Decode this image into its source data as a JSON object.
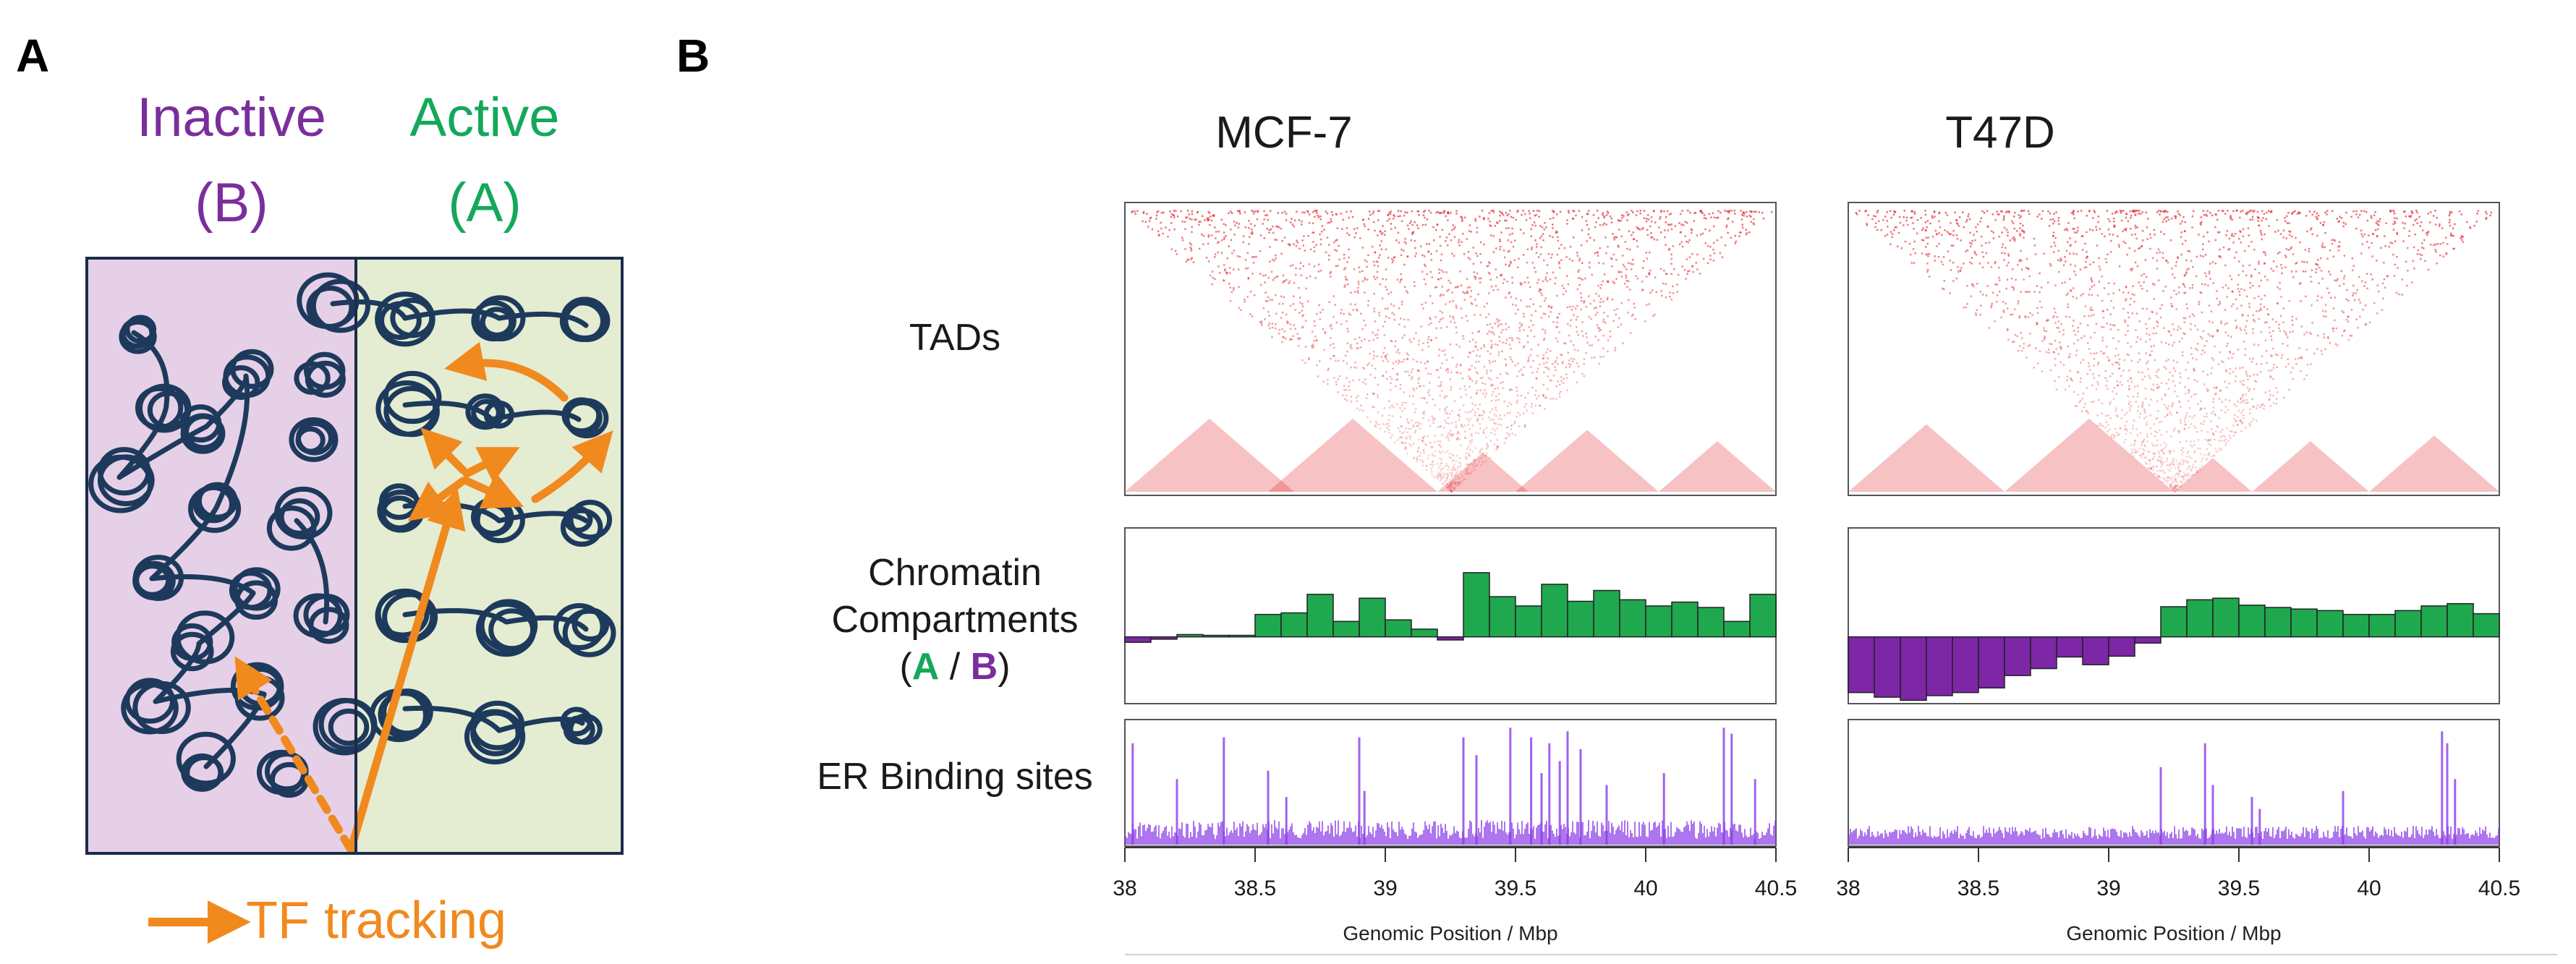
{
  "panel_a": {
    "letter": "A",
    "inactive_word": "Inactive",
    "inactive_code": "(B)",
    "active_word": "Active",
    "active_code": "(A)",
    "legend_label": "TF tracking",
    "colors": {
      "inactive_bg": "#e6d0e8",
      "active_bg": "#e4ecd2",
      "fiber": "#1d3a5c",
      "arrow": "#f08a1e"
    }
  },
  "panel_b": {
    "letter": "B",
    "column_titles": [
      "MCF-7",
      "T47D"
    ],
    "row_labels": {
      "tads": "TADs",
      "compartments_line1": "Chromatin",
      "compartments_line2": "Compartments",
      "paren_open": "(",
      "a_letter": "A",
      "slash": " / ",
      "b_letter": "B",
      "paren_close": ")",
      "er": "ER Binding sites"
    },
    "xaxis_title": "Genomic Position / Mbp",
    "colors": {
      "tad": "#e3242b",
      "compartment_a": "#1fa84e",
      "compartment_b": "#7d27a6",
      "er": "#8b3ce8"
    }
  },
  "chart_data": [
    {
      "type": "bar",
      "title": "MCF-7 Chromatin Compartments (A / B)",
      "xlabel": "Genomic Position / Mbp",
      "xlim": [
        38,
        40.5
      ],
      "ylim": [
        -1,
        1
      ],
      "xticks": [
        38,
        38.5,
        39,
        39.5,
        40,
        40.5
      ],
      "xtick_labels": [
        "38",
        "38.5",
        "39",
        "39.5",
        "40",
        "40.5"
      ],
      "bin_width": 0.1,
      "x": [
        38.0,
        38.1,
        38.2,
        38.3,
        38.4,
        38.5,
        38.6,
        38.7,
        38.8,
        38.9,
        39.0,
        39.1,
        39.2,
        39.3,
        39.4,
        39.5,
        39.6,
        39.7,
        39.8,
        39.9,
        40.0,
        40.1,
        40.2,
        40.3,
        40.4
      ],
      "values": [
        -0.07,
        -0.03,
        0.03,
        0.02,
        0.02,
        0.29,
        0.31,
        0.55,
        0.2,
        0.5,
        0.22,
        0.1,
        -0.04,
        0.83,
        0.52,
        0.4,
        0.68,
        0.46,
        0.6,
        0.48,
        0.4,
        0.45,
        0.38,
        0.2,
        0.55
      ]
    },
    {
      "type": "bar",
      "title": "T47D Chromatin Compartments (A / B)",
      "xlabel": "Genomic Position / Mbp",
      "xlim": [
        38,
        40.5
      ],
      "ylim": [
        -1,
        1
      ],
      "xticks": [
        38,
        38.5,
        39,
        39.5,
        40,
        40.5
      ],
      "xtick_labels": [
        "38",
        "38.5",
        "39",
        "39.5",
        "40",
        "40.5"
      ],
      "bin_width": 0.1,
      "x": [
        38.0,
        38.1,
        38.2,
        38.3,
        38.4,
        38.5,
        38.6,
        38.7,
        38.8,
        38.9,
        39.0,
        39.1,
        39.2,
        39.3,
        39.4,
        39.5,
        39.6,
        39.7,
        39.8,
        39.9,
        40.0,
        40.1,
        40.2,
        40.3,
        40.4
      ],
      "values": [
        -0.72,
        -0.78,
        -0.82,
        -0.76,
        -0.72,
        -0.66,
        -0.5,
        -0.41,
        -0.26,
        -0.36,
        -0.25,
        -0.08,
        0.39,
        0.48,
        0.5,
        0.41,
        0.38,
        0.36,
        0.34,
        0.29,
        0.29,
        0.34,
        0.4,
        0.43,
        0.3
      ]
    },
    {
      "type": "bar",
      "title": "MCF-7 ER Binding sites",
      "xlabel": "Genomic Position / Mbp",
      "xlim": [
        38,
        40.5
      ],
      "ylim": [
        0,
        1
      ],
      "xticks": [
        38,
        38.5,
        39,
        39.5,
        40,
        40.5
      ],
      "xtick_labels": [
        "38",
        "38.5",
        "39",
        "39.5",
        "40",
        "40.5"
      ],
      "peaks_x": [
        38.03,
        38.2,
        38.38,
        38.55,
        38.62,
        38.9,
        38.92,
        39.3,
        39.35,
        39.48,
        39.56,
        39.6,
        39.63,
        39.67,
        39.7,
        39.75,
        39.85,
        40.07,
        40.3,
        40.33,
        40.42
      ],
      "peaks_y": [
        0.85,
        0.55,
        0.9,
        0.62,
        0.4,
        0.9,
        0.45,
        0.9,
        0.75,
        0.98,
        0.9,
        0.6,
        0.85,
        0.7,
        0.95,
        0.8,
        0.5,
        0.6,
        0.98,
        0.93,
        0.55
      ]
    },
    {
      "type": "bar",
      "title": "T47D ER Binding sites",
      "xlabel": "Genomic Position / Mbp",
      "xlim": [
        38,
        40.5
      ],
      "ylim": [
        0,
        1
      ],
      "xticks": [
        38,
        38.5,
        39,
        39.5,
        40,
        40.5
      ],
      "xtick_labels": [
        "38",
        "38.5",
        "39",
        "39.5",
        "40",
        "40.5"
      ],
      "peaks_x": [
        39.2,
        39.37,
        39.4,
        39.55,
        39.58,
        39.9,
        40.28,
        40.3,
        40.33
      ],
      "peaks_y": [
        0.65,
        0.85,
        0.5,
        0.4,
        0.3,
        0.45,
        0.95,
        0.85,
        0.55
      ]
    },
    {
      "type": "heatmap",
      "title": "MCF-7 TADs",
      "xlim": [
        38,
        40.5
      ],
      "domains": [
        [
          38,
          38.65
        ],
        [
          38.55,
          39.2
        ],
        [
          39.2,
          39.55
        ],
        [
          39.5,
          40.05
        ],
        [
          40.05,
          40.5
        ]
      ]
    },
    {
      "type": "heatmap",
      "title": "T47D TADs",
      "xlim": [
        38,
        40.5
      ],
      "domains": [
        [
          38,
          38.6
        ],
        [
          38.6,
          39.25
        ],
        [
          39.25,
          39.55
        ],
        [
          39.55,
          40.0
        ],
        [
          40.0,
          40.5
        ]
      ]
    }
  ]
}
